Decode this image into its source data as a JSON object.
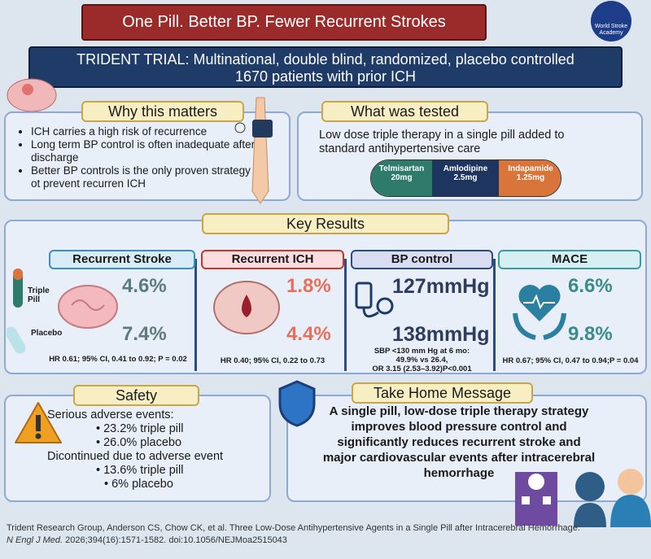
{
  "header": {
    "title": "One Pill. Better BP. Fewer Recurrent Strokes",
    "logo": "World Stroke",
    "logo_sub": "Academy"
  },
  "trial": {
    "line1": "TRIDENT TRIAL: Multinational, double blind, randomized, placebo controlled",
    "line2": "1670 patients with prior ICH"
  },
  "why": {
    "title": "Why this matters",
    "bullets": [
      "ICH carries a high risk of recurrence",
      "Long term BP control is often inadequate after discharge",
      "Better BP controls is the only proven strategy ot prevent recurren ICH"
    ]
  },
  "tested": {
    "title": "What was tested",
    "text": "Low dose triple therapy in a single pill added to standard antihypertensive care",
    "pill": [
      {
        "name": "Telmisartan",
        "dose": "20mg"
      },
      {
        "name": "Amlodipine",
        "dose": "2.5mg"
      },
      {
        "name": "Indapamide",
        "dose": "1.25mg"
      }
    ]
  },
  "results": {
    "title": "Key Results",
    "legend": {
      "triple": "Triple Pill",
      "placebo": "Placebo"
    },
    "cards": [
      {
        "title": "Recurrent Stroke",
        "top": "4.6%",
        "bottom": "7.4%",
        "stats": [
          "HR 0.61; 95% CI, 0.41 to 0.92; P = 0.02"
        ]
      },
      {
        "title": "Recurrent ICH",
        "top": "1.8%",
        "bottom": "4.4%",
        "stats": [
          "HR 0.40; 95% CI, 0.22 to 0.73"
        ]
      },
      {
        "title": "BP control",
        "top": "127mmHg",
        "bottom": "138mmHg",
        "stats": [
          "SBP <130 mm Hg at 6 mo:",
          "49.9% vs 26.4,",
          "OR 3.15 (2.53–3.92)P<0.001"
        ]
      },
      {
        "title": "MACE",
        "top": "6.6%",
        "bottom": "9.8%",
        "stats": [
          "HR 0.67; 95% CI, 0.47 to 0.94;P = 0.04"
        ]
      }
    ]
  },
  "safety": {
    "title": "Safety",
    "lines": [
      "Serious adverse events:",
      "23.2% triple pill",
      "26.0% placebo",
      "Dicontinued due to adverse event",
      "13.6% triple pill",
      "6% placebo"
    ]
  },
  "take_home": {
    "title": "Take Home Message",
    "text": "A single pill, low-dose triple therapy strategy improves blood pressure control and significantly reduces recurrent stroke and major cardiovascular events after intracerebral hemorrhage"
  },
  "citation": {
    "line1": "Trident Research Group, Anderson CS, Chow CK, et al. Three Low-Dose Antihypertensive Agents in a Single Pill after Intracerebral Hemorrhage.",
    "journal": "N Engl J Med.",
    "ref": " 2026;394(16):1571-1582. doi:10.1056/NEJMoa2515043"
  }
}
